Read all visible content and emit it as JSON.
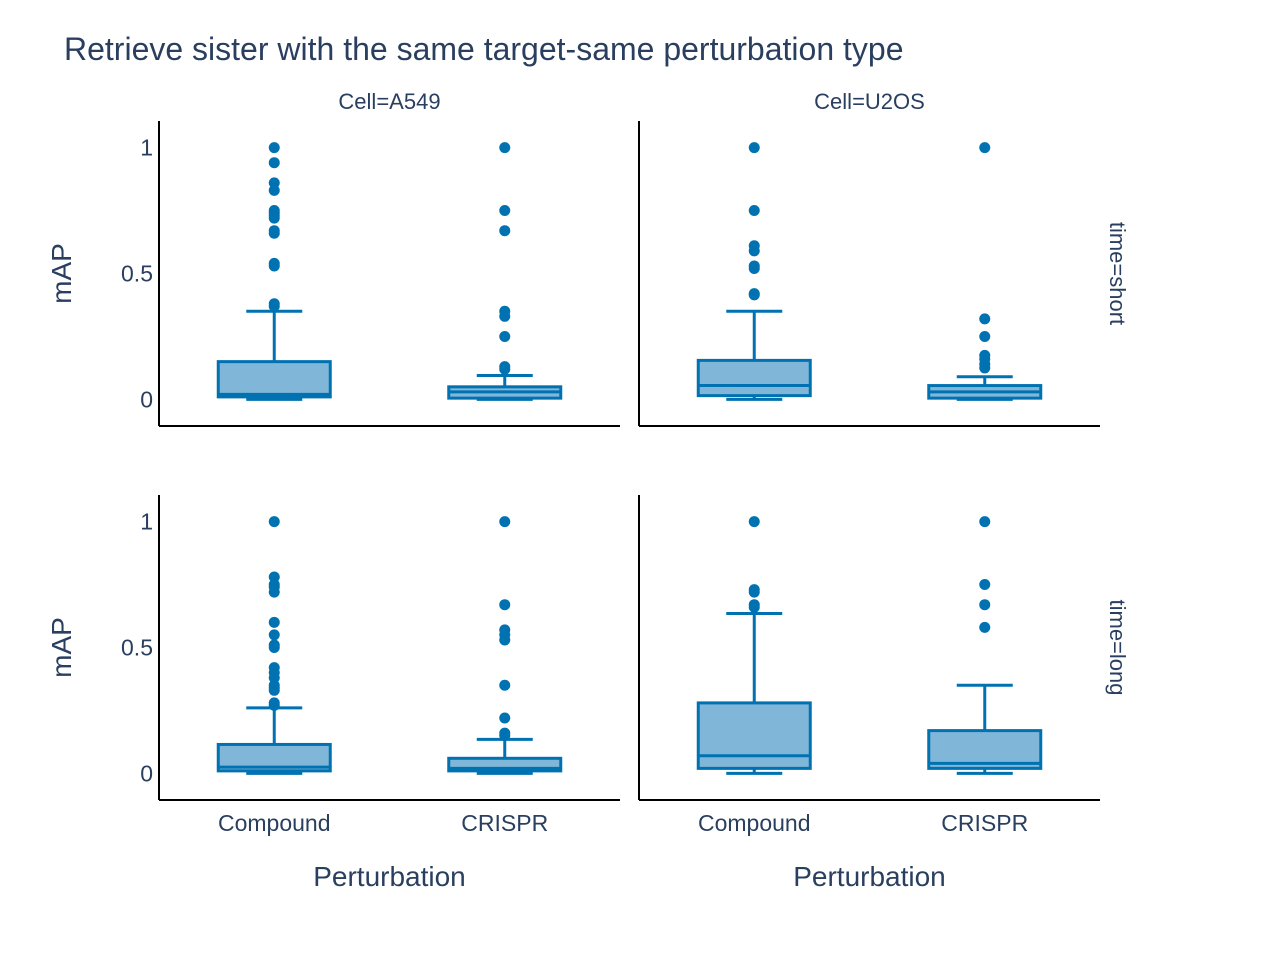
{
  "colors": {
    "accent": "#0072b2",
    "box_fill": "#80b6d8",
    "text": "#2a3f5f",
    "axis_line": "#000000",
    "background": "#ffffff"
  },
  "chart_data": {
    "type": "box",
    "title": "Retrieve sister with the same target-same perturbation type",
    "xlabel": "Perturbation",
    "ylabel": "mAP",
    "column_facet_labels": [
      "Cell=A549",
      "Cell=U2OS"
    ],
    "row_facet_labels": [
      "time=short",
      "time=long"
    ],
    "categories": [
      "Compound",
      "CRISPR"
    ],
    "yticks": [
      "0",
      "0.5",
      "1"
    ],
    "ylim": [
      -0.05,
      1.05
    ],
    "grid": false,
    "panels": [
      {
        "cell": "A549",
        "time": "short",
        "boxes": [
          {
            "category": "Compound",
            "min": 0.0,
            "q1": 0.01,
            "median": 0.02,
            "q3": 0.15,
            "whisker_high": 0.35,
            "outliers": [
              1.0,
              0.94,
              0.86,
              0.83,
              0.75,
              0.74,
              0.73,
              0.72,
              0.67,
              0.66,
              0.54,
              0.53,
              0.38,
              0.37
            ]
          },
          {
            "category": "CRISPR",
            "min": 0.0,
            "q1": 0.005,
            "median": 0.03,
            "q3": 0.05,
            "whisker_high": 0.095,
            "outliers": [
              1.0,
              0.75,
              0.67,
              0.35,
              0.33,
              0.25,
              0.13,
              0.12
            ]
          }
        ]
      },
      {
        "cell": "U2OS",
        "time": "short",
        "boxes": [
          {
            "category": "Compound",
            "min": 0.0,
            "q1": 0.015,
            "median": 0.055,
            "q3": 0.155,
            "whisker_high": 0.35,
            "outliers": [
              1.0,
              0.75,
              0.61,
              0.59,
              0.53,
              0.52,
              0.42,
              0.415
            ]
          },
          {
            "category": "CRISPR",
            "min": 0.0,
            "q1": 0.005,
            "median": 0.03,
            "q3": 0.055,
            "whisker_high": 0.09,
            "outliers": [
              1.0,
              0.32,
              0.25,
              0.175,
              0.16,
              0.14,
              0.125
            ]
          }
        ]
      },
      {
        "cell": "A549",
        "time": "long",
        "boxes": [
          {
            "category": "Compound",
            "min": 0.0,
            "q1": 0.01,
            "median": 0.025,
            "q3": 0.115,
            "whisker_high": 0.26,
            "outliers": [
              1.0,
              0.78,
              0.75,
              0.74,
              0.72,
              0.6,
              0.55,
              0.51,
              0.5,
              0.42,
              0.4,
              0.38,
              0.35,
              0.34,
              0.33,
              0.28,
              0.27
            ]
          },
          {
            "category": "CRISPR",
            "min": 0.0,
            "q1": 0.01,
            "median": 0.02,
            "q3": 0.06,
            "whisker_high": 0.135,
            "outliers": [
              1.0,
              0.67,
              0.57,
              0.55,
              0.53,
              0.35,
              0.22,
              0.16,
              0.15
            ]
          }
        ]
      },
      {
        "cell": "U2OS",
        "time": "long",
        "boxes": [
          {
            "category": "Compound",
            "min": 0.0,
            "q1": 0.02,
            "median": 0.07,
            "q3": 0.28,
            "whisker_high": 0.635,
            "outliers": [
              1.0,
              0.73,
              0.72,
              0.67,
              0.66
            ]
          },
          {
            "category": "CRISPR",
            "min": 0.0,
            "q1": 0.02,
            "median": 0.04,
            "q3": 0.17,
            "whisker_high": 0.35,
            "outliers": [
              1.0,
              0.75,
              0.67,
              0.58
            ]
          }
        ]
      }
    ]
  }
}
